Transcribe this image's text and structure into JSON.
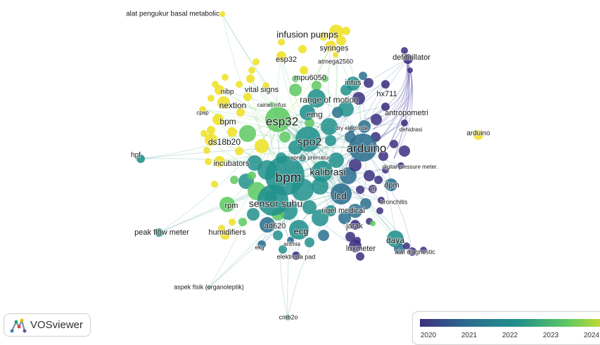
{
  "app": {
    "logo_text": "VOSviewer"
  },
  "legend": {
    "ticks": [
      "2020",
      "2021",
      "2022",
      "2023",
      "2024"
    ],
    "colors": [
      "#3b2f7f",
      "#2b6e8e",
      "#21918c",
      "#5ec962",
      "#f0e021"
    ]
  },
  "network": {
    "nodes": [
      {
        "label": "alat pengukur basal metabolic",
        "year": 2024
      },
      {
        "label": "infusion pumps",
        "year": 2024
      },
      {
        "label": "syringes",
        "year": 2024
      },
      {
        "label": "atmega2560",
        "year": 2024
      },
      {
        "label": "esp32",
        "year": 2024
      },
      {
        "label": "mpu6050",
        "year": 2024
      },
      {
        "label": "defibrillator",
        "year": 2020
      },
      {
        "label": "infus",
        "year": 2022
      },
      {
        "label": "vital signs",
        "year": 2024
      },
      {
        "label": "nibp",
        "year": 2024
      },
      {
        "label": "hx711",
        "year": 2020
      },
      {
        "label": "range of motion",
        "year": 2022
      },
      {
        "label": "cairan infus",
        "year": 2023
      },
      {
        "label": "nextion",
        "year": 2024
      },
      {
        "label": "antropometri",
        "year": 2020
      },
      {
        "label": "cpap",
        "year": 2024
      },
      {
        "label": "emg",
        "year": 2022
      },
      {
        "label": "esp32",
        "year": 2023
      },
      {
        "label": "bpm",
        "year": 2024
      },
      {
        "label": "dehidrasi",
        "year": 2020
      },
      {
        "label": "dry electrode",
        "year": 2021
      },
      {
        "label": "arduino",
        "year": 2024
      },
      {
        "label": "ds18b20",
        "year": 2024
      },
      {
        "label": "spo2",
        "year": 2022
      },
      {
        "label": "arduino",
        "year": 2021
      },
      {
        "label": "hpf",
        "year": 2022
      },
      {
        "label": "apnea prematur",
        "year": 2022
      },
      {
        "label": "incubators",
        "year": 2024
      },
      {
        "label": "digital pressure meter.",
        "year": 2020
      },
      {
        "label": "kalibrasi",
        "year": 2022
      },
      {
        "label": "bpm",
        "year": 2022
      },
      {
        "label": "dpm",
        "year": 2021
      },
      {
        "label": "tft",
        "year": 2020
      },
      {
        "label": "lcd",
        "year": 2021
      },
      {
        "label": "bronchitis",
        "year": 2020
      },
      {
        "label": "rpm",
        "year": 2023
      },
      {
        "label": "sensor suhu",
        "year": 2022
      },
      {
        "label": "rigel medical",
        "year": 2022
      },
      {
        "label": "ad620",
        "year": 2021
      },
      {
        "label": "peak flow meter",
        "year": 2022
      },
      {
        "label": "humidifiers",
        "year": 2024
      },
      {
        "label": "jarak",
        "year": 2020
      },
      {
        "label": "ecg",
        "year": 2022
      },
      {
        "label": "daya",
        "year": 2022
      },
      {
        "label": "aritmia",
        "year": 2021
      },
      {
        "label": "ekg",
        "year": 2021
      },
      {
        "label": "luxmeter",
        "year": 2020
      },
      {
        "label": "alat diagnostic",
        "year": 2020
      },
      {
        "label": "elektroda pad",
        "year": 2020
      },
      {
        "label": "aspek fisik (organoleptik)",
        "year": 2022
      },
      {
        "label": "cmh2o",
        "year": 2022
      }
    ]
  }
}
